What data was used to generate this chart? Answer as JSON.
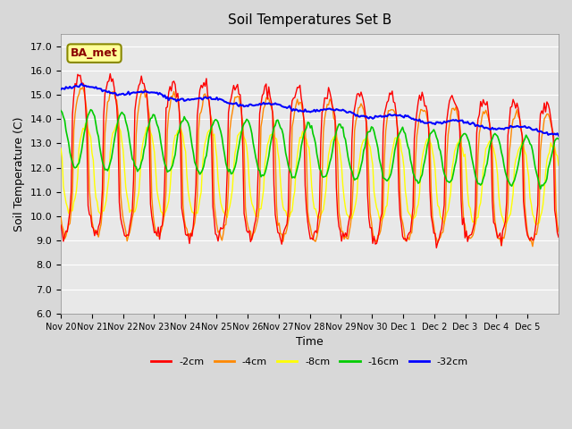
{
  "title": "Soil Temperatures Set B",
  "xlabel": "Time",
  "ylabel": "Soil Temperature (C)",
  "ylim": [
    6.0,
    17.5
  ],
  "yticks": [
    6.0,
    7.0,
    8.0,
    9.0,
    10.0,
    11.0,
    12.0,
    13.0,
    14.0,
    15.0,
    16.0,
    17.0
  ],
  "xtick_labels": [
    "Nov 20",
    "Nov 21",
    "Nov 22",
    "Nov 23",
    "Nov 24",
    "Nov 25",
    "Nov 26",
    "Nov 27",
    "Nov 28",
    "Nov 29",
    "Nov 30",
    "Dec 1",
    "Dec 2",
    "Dec 3",
    "Dec 4",
    "Dec 5"
  ],
  "colors": {
    "-2cm": "#ff0000",
    "-4cm": "#ff8800",
    "-8cm": "#ffff00",
    "-16cm": "#00cc00",
    "-32cm": "#0000ff"
  },
  "annotation_text": "BA_met",
  "annotation_bg": "#ffff99",
  "annotation_border": "#888800",
  "n_points_per_day": 24,
  "n_days": 16
}
